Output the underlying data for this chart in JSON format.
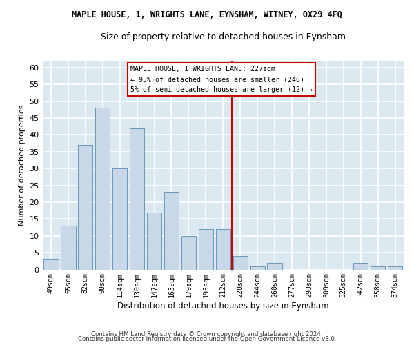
{
  "title": "MAPLE HOUSE, 1, WRIGHTS LANE, EYNSHAM, WITNEY, OX29 4FQ",
  "subtitle": "Size of property relative to detached houses in Eynsham",
  "xlabel": "Distribution of detached houses by size in Eynsham",
  "ylabel": "Number of detached properties",
  "categories": [
    "49sqm",
    "65sqm",
    "82sqm",
    "98sqm",
    "114sqm",
    "130sqm",
    "147sqm",
    "163sqm",
    "179sqm",
    "195sqm",
    "212sqm",
    "228sqm",
    "244sqm",
    "260sqm",
    "277sqm",
    "293sqm",
    "309sqm",
    "325sqm",
    "342sqm",
    "358sqm",
    "374sqm"
  ],
  "values": [
    3,
    13,
    37,
    48,
    30,
    42,
    17,
    23,
    10,
    12,
    12,
    4,
    1,
    2,
    0,
    0,
    0,
    0,
    2,
    1,
    1
  ],
  "bar_color": "#c8d8e8",
  "bar_edgecolor": "#6699bb",
  "vline_color": "#cc0000",
  "annotation_text": "MAPLE HOUSE, 1 WRIGHTS LANE: 227sqm\n← 95% of detached houses are smaller (246)\n5% of semi-detached houses are larger (12) →",
  "annotation_box_edgecolor": "#cc0000",
  "annotation_box_facecolor": "#ffffff",
  "footer_line1": "Contains HM Land Registry data © Crown copyright and database right 2024.",
  "footer_line2": "Contains public sector information licensed under the Open Government Licence v3.0.",
  "plot_bg_color": "#dce8f0",
  "fig_bg_color": "#ffffff",
  "grid_color": "#ffffff",
  "ylim": [
    0,
    62
  ],
  "yticks": [
    0,
    5,
    10,
    15,
    20,
    25,
    30,
    35,
    40,
    45,
    50,
    55,
    60
  ]
}
